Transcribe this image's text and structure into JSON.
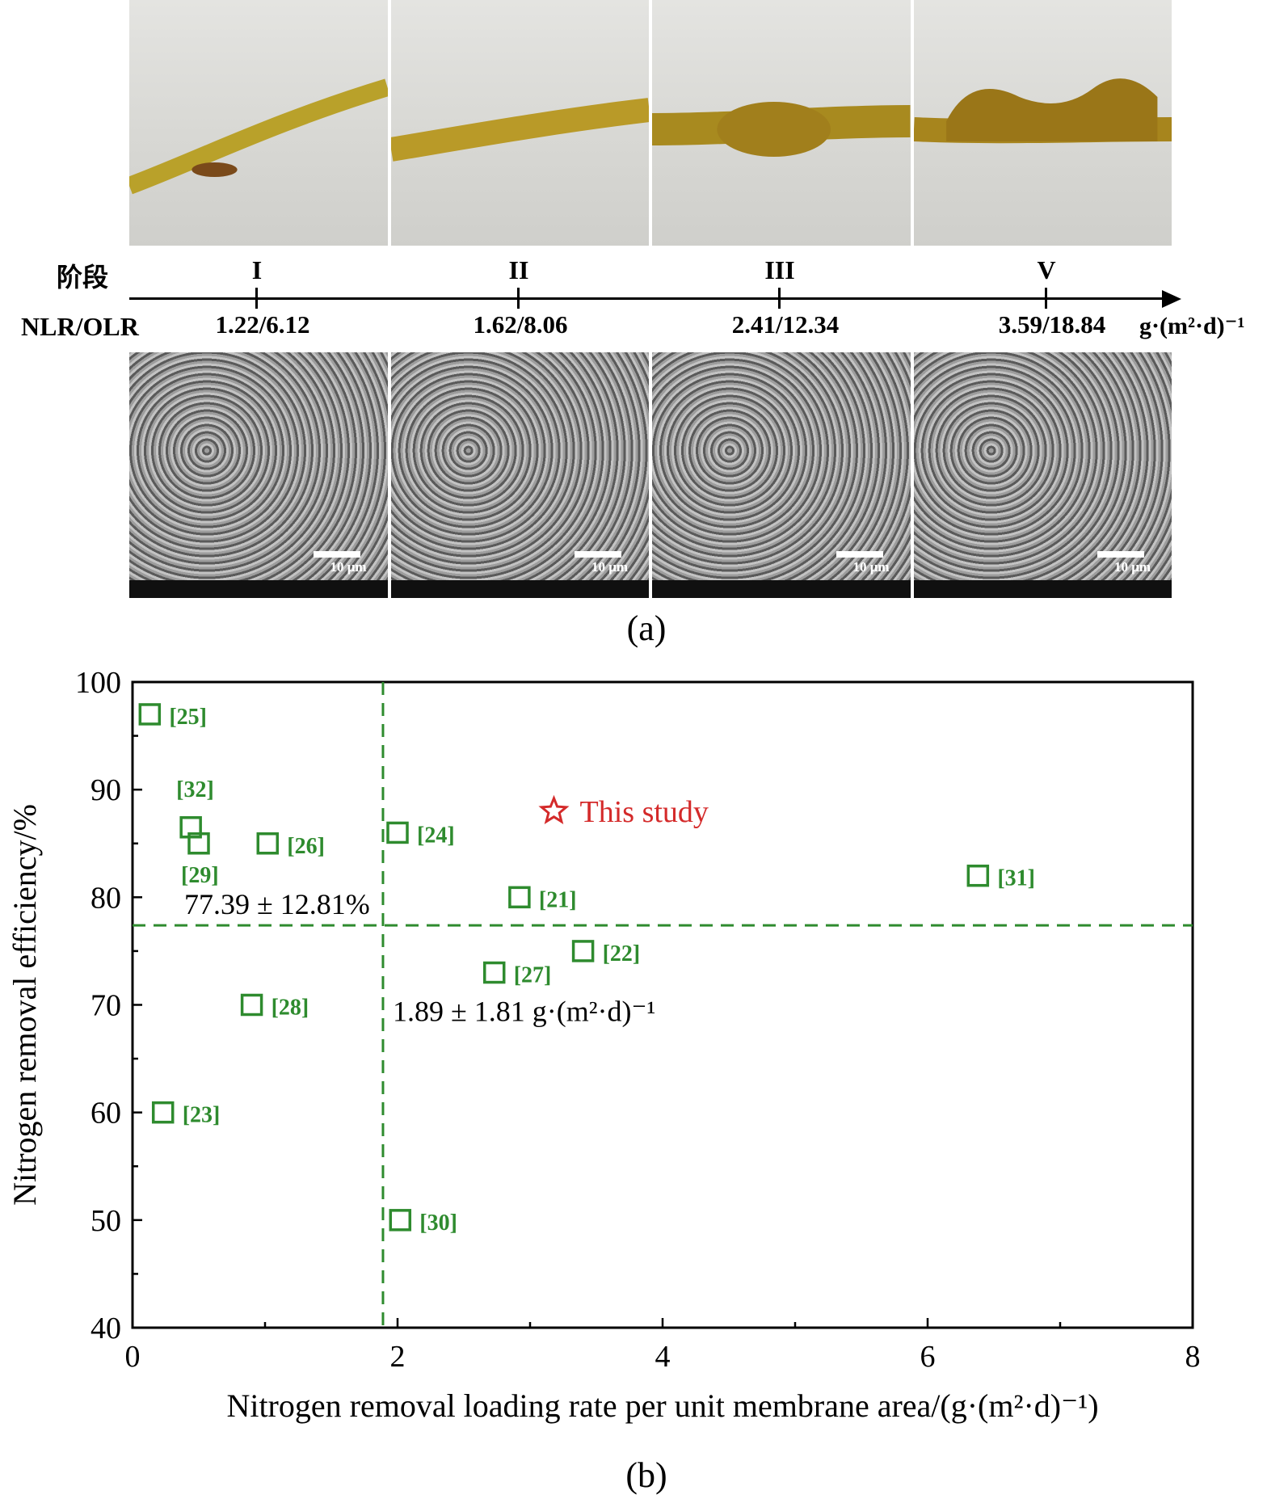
{
  "panel_a": {
    "stage_heading": "阶段",
    "loading_heading": "NLR/OLR",
    "loading_unit": "g·(m²·d)⁻¹",
    "stages": [
      {
        "roman": "I",
        "loading": "1.22/6.12"
      },
      {
        "roman": "II",
        "loading": "1.62/8.06"
      },
      {
        "roman": "III",
        "loading": "2.41/12.34"
      },
      {
        "roman": "V",
        "loading": "3.59/18.84"
      }
    ],
    "scale_label": "10 μm",
    "caption": "(a)"
  },
  "chart_data": {
    "type": "scatter",
    "xlabel": "Nitrogen removal loading rate per unit membrane area/(g·(m²·d)⁻¹)",
    "ylabel": "Nitrogen removal efficiency/%",
    "xlim": [
      0,
      8
    ],
    "ylim": [
      40,
      100
    ],
    "xticks": [
      0,
      2,
      4,
      6,
      8
    ],
    "yticks": [
      40,
      50,
      60,
      70,
      80,
      90,
      100
    ],
    "grid": false,
    "series": [
      {
        "marker": "open-square",
        "color": "#2e8b2e",
        "points": [
          {
            "label": "[25]",
            "x": 0.13,
            "y": 97
          },
          {
            "label": "[32]",
            "x": 0.44,
            "y": 86.5
          },
          {
            "label": "[29]",
            "x": 0.5,
            "y": 85
          },
          {
            "label": "[26]",
            "x": 1.02,
            "y": 85
          },
          {
            "label": "[24]",
            "x": 2.0,
            "y": 86
          },
          {
            "label": "[21]",
            "x": 2.92,
            "y": 80
          },
          {
            "label": "[22]",
            "x": 3.4,
            "y": 75
          },
          {
            "label": "[27]",
            "x": 2.73,
            "y": 73
          },
          {
            "label": "[28]",
            "x": 0.9,
            "y": 70
          },
          {
            "label": "[23]",
            "x": 0.23,
            "y": 60
          },
          {
            "label": "[30]",
            "x": 2.02,
            "y": 50
          },
          {
            "label": "[31]",
            "x": 6.38,
            "y": 82
          }
        ]
      },
      {
        "marker": "open-star",
        "color": "#d42a2a",
        "points": [
          {
            "label": "This study",
            "x": 3.18,
            "y": 88
          }
        ]
      }
    ],
    "reference_lines": [
      {
        "orientation": "horizontal",
        "value": 77.39,
        "label": "77.39 ± 12.81%"
      },
      {
        "orientation": "vertical",
        "value": 1.89,
        "label": "1.89 ± 1.81 g·(m²·d)⁻¹"
      }
    ],
    "caption": "(b)"
  }
}
